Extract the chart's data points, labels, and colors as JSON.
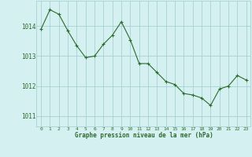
{
  "x": [
    0,
    1,
    2,
    3,
    4,
    5,
    6,
    7,
    8,
    9,
    10,
    11,
    12,
    13,
    14,
    15,
    16,
    17,
    18,
    19,
    20,
    21,
    22,
    23
  ],
  "y": [
    1013.9,
    1014.55,
    1014.4,
    1013.85,
    1013.35,
    1012.95,
    1013.0,
    1013.4,
    1013.7,
    1014.15,
    1013.55,
    1012.75,
    1012.75,
    1012.45,
    1012.15,
    1012.05,
    1011.75,
    1011.7,
    1011.6,
    1011.35,
    1011.9,
    1012.0,
    1012.35,
    1012.2
  ],
  "line_color": "#2d6a2d",
  "marker": "+",
  "bg_color": "#d4f0f0",
  "grid_color": "#a0cccc",
  "xlabel": "Graphe pression niveau de la mer (hPa)",
  "xlabel_color": "#2d6a2d",
  "tick_color": "#2d6a2d",
  "yticks": [
    1011,
    1012,
    1013,
    1014
  ],
  "ylim": [
    1010.65,
    1014.85
  ],
  "xlim": [
    -0.5,
    23.5
  ],
  "xticks": [
    0,
    1,
    2,
    3,
    4,
    5,
    6,
    7,
    8,
    9,
    10,
    11,
    12,
    13,
    14,
    15,
    16,
    17,
    18,
    19,
    20,
    21,
    22,
    23
  ]
}
